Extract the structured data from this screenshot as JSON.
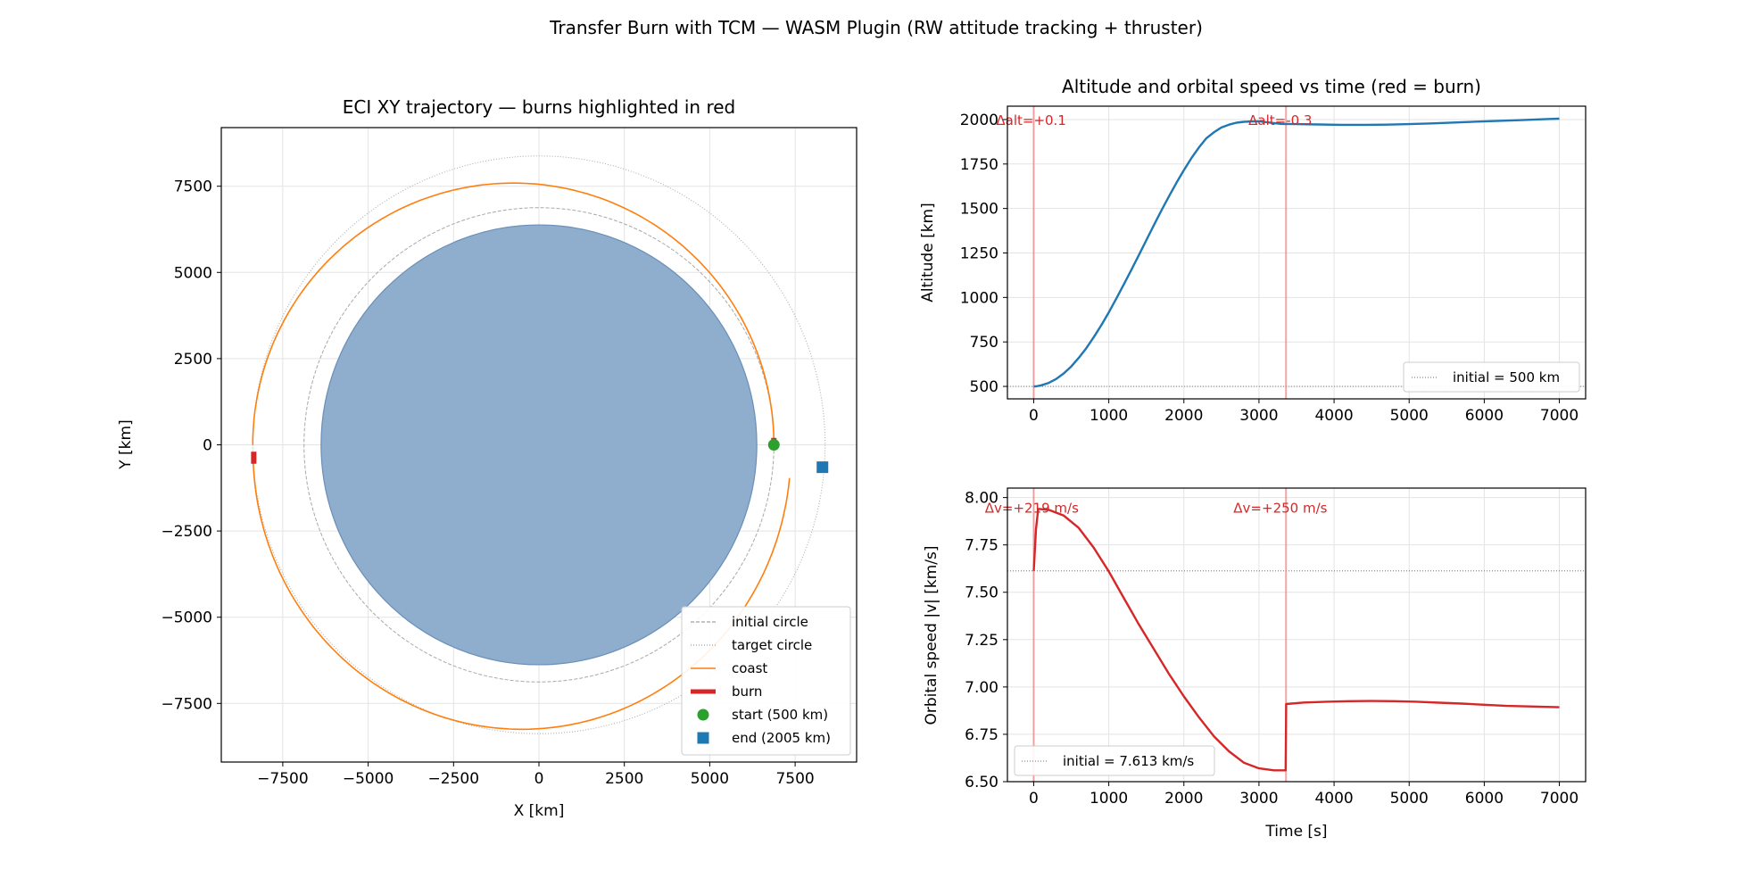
{
  "suptitle": "Transfer Burn with TCM — WASM Plugin (RW attitude tracking + thruster)",
  "colors": {
    "earth": "#8fadcc",
    "earth_edge": "#6a8fb8",
    "coast": "#ff7f0e",
    "burn": "#d62728",
    "start": "#2ca02c",
    "end": "#1f77b4",
    "altitude_line": "#1f77b4",
    "speed_line": "#d62728",
    "grid": "#e3e3e3",
    "reference": "#888888"
  },
  "chart_data": [
    {
      "id": "trajectory",
      "type": "line",
      "title": "ECI XY trajectory — burns highlighted in red",
      "xlabel": "X [km]",
      "ylabel": "Y [km]",
      "xlim": [
        -9300,
        9300
      ],
      "ylim": [
        -9200,
        9200
      ],
      "xticks": [
        -7500,
        -5000,
        -2500,
        0,
        2500,
        5000,
        7500
      ],
      "yticks": [
        -7500,
        -5000,
        -2500,
        0,
        2500,
        5000,
        7500
      ],
      "grid": true,
      "earth_radius_km": 6378,
      "initial_circle_radius_km": 6878,
      "target_circle_radius_km": 8378,
      "transfer_orbit": {
        "periapsis_km": 6878,
        "apoapsis_km": 8378,
        "periapsis_direction": "+x"
      },
      "final_orbit": {
        "center_x": -500,
        "center_y": -200,
        "semi_axis_x": 7870,
        "semi_axis_y": 8050
      },
      "burns": [
        {
          "x": [
            6878,
            6876
          ],
          "y": [
            0,
            200
          ]
        },
        {
          "x": [
            -8350,
            -8350
          ],
          "y": [
            -200,
            -550
          ]
        }
      ],
      "start_point": {
        "x": 6878,
        "y": 0
      },
      "end_point": {
        "x": 8300,
        "y": -650
      },
      "legend": {
        "placement": "lower right",
        "entries": [
          "initial circle",
          "target circle",
          "coast",
          "burn",
          "start (500 km)",
          "end (2005 km)"
        ]
      }
    },
    {
      "id": "altitude",
      "type": "line",
      "title": "Altitude and orbital speed vs time (red = burn)",
      "ylabel": "Altitude [km]",
      "xlim": [
        -350,
        7350
      ],
      "ylim": [
        430,
        2075
      ],
      "xticks": [
        0,
        1000,
        2000,
        3000,
        4000,
        5000,
        6000,
        7000
      ],
      "yticks": [
        500,
        750,
        1000,
        1250,
        1500,
        1750,
        2000
      ],
      "grid": true,
      "series": [
        {
          "x": [
            0,
            30,
            100,
            200,
            300,
            400,
            500,
            600,
            700,
            800,
            900,
            1000,
            1100,
            1200,
            1300,
            1400,
            1500,
            1600,
            1700,
            1800,
            1900,
            2000,
            2100,
            2200,
            2300,
            2400,
            2500,
            2600,
            2700,
            2800,
            2900,
            3000,
            3100,
            3200,
            3300,
            3360,
            3500,
            3800,
            4100,
            4400,
            4700,
            5000,
            5300,
            5600,
            5900,
            6200,
            6500,
            6800,
            7000
          ],
          "y": [
            500,
            500,
            506,
            520,
            542,
            573,
            612,
            660,
            715,
            777,
            844,
            916,
            993,
            1073,
            1155,
            1238,
            1322,
            1406,
            1488,
            1567,
            1644,
            1716,
            1783,
            1843,
            1895,
            1928,
            1955,
            1971,
            1982,
            1987,
            1989,
            1990,
            1985,
            1980,
            1975,
            1975,
            1974,
            1972,
            1970,
            1970,
            1971,
            1974,
            1978,
            1983,
            1988,
            1993,
            1997,
            2002,
            2005
          ]
        }
      ],
      "burn_times": [
        0,
        3360
      ],
      "annotations": [
        {
          "text": "Δalt=+0.1",
          "x": -500,
          "y": 1995
        },
        {
          "text": "Δalt=-0.3",
          "x": 2860,
          "y": 1995
        }
      ],
      "reference": {
        "y": 500,
        "label": "initial = 500 km"
      },
      "legend": {
        "placement": "lower right"
      }
    },
    {
      "id": "speed",
      "type": "line",
      "xlabel": "Time [s]",
      "ylabel": "Orbital speed |v| [km/s]",
      "xlim": [
        -350,
        7350
      ],
      "ylim": [
        6.5,
        8.05
      ],
      "xticks": [
        0,
        1000,
        2000,
        3000,
        4000,
        5000,
        6000,
        7000
      ],
      "yticks": [
        6.5,
        6.75,
        7.0,
        7.25,
        7.5,
        7.75,
        8.0
      ],
      "grid": true,
      "series": [
        {
          "x": [
            0,
            30,
            60,
            200,
            400,
            600,
            800,
            1000,
            1200,
            1400,
            1600,
            1800,
            2000,
            2200,
            2400,
            2600,
            2800,
            3000,
            3200,
            3355,
            3360,
            3362,
            3600,
            3900,
            4200,
            4500,
            4800,
            5100,
            5400,
            5700,
            6000,
            6300,
            6600,
            7000
          ],
          "y": [
            7.613,
            7.832,
            7.94,
            7.935,
            7.905,
            7.84,
            7.735,
            7.61,
            7.47,
            7.33,
            7.2,
            7.07,
            6.95,
            6.84,
            6.74,
            6.66,
            6.6,
            6.57,
            6.56,
            6.56,
            6.78,
            6.91,
            6.918,
            6.922,
            6.925,
            6.926,
            6.925,
            6.922,
            6.917,
            6.912,
            6.906,
            6.9,
            6.897,
            6.893
          ]
        }
      ],
      "burn_times": [
        0,
        3360
      ],
      "annotations": [
        {
          "text": "Δv=+219 m/s",
          "x": -650,
          "y": 7.945
        },
        {
          "text": "Δv=+250 m/s",
          "x": 2660,
          "y": 7.945
        }
      ],
      "reference": {
        "y": 7.613,
        "label": "initial = 7.613 km/s"
      },
      "legend": {
        "placement": "lower left"
      }
    }
  ]
}
